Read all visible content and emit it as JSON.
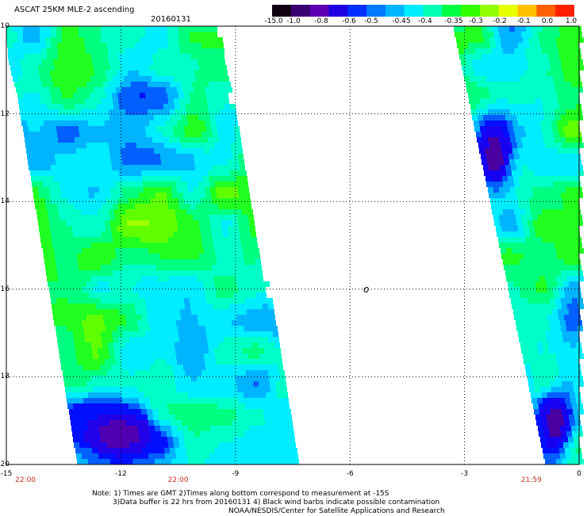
{
  "header": {
    "title": "ASCAT 25KM MLE-2 ascending",
    "date": "20160131"
  },
  "colorbar": {
    "colors": [
      "#120010",
      "#3a0070",
      "#5a00b0",
      "#2000e0",
      "#0030ff",
      "#0078ff",
      "#00b4ff",
      "#00ecff",
      "#00ffb0",
      "#00ff40",
      "#30ff00",
      "#90ff00",
      "#e8ff00",
      "#ffc000",
      "#ff6000",
      "#ff2000"
    ],
    "labels": [
      "-15.0",
      "-1.0",
      "-0.8",
      "-0.6",
      "-0.5",
      "-0.45",
      "-0.4",
      "-0.35",
      "-0.3",
      "-0.2",
      "-0.1",
      "0.0",
      "1.0"
    ]
  },
  "map": {
    "lon_range": [
      -15,
      0
    ],
    "lat_range": [
      -20,
      -10
    ],
    "y_labels": [
      "-10",
      "-12",
      "-14",
      "-16",
      "-18",
      "-20"
    ],
    "x_labels": [
      "-15",
      "-12",
      "-9",
      "-6",
      "-3",
      "0"
    ],
    "time_labels": [
      {
        "text": "22:00",
        "lon": -14.5
      },
      {
        "text": "22:00",
        "lon": -10.5
      },
      {
        "text": "21:59",
        "lon": -1.25
      }
    ],
    "grid_lon": [
      -12,
      -9,
      -6,
      -3
    ],
    "grid_lat": [
      -12,
      -14,
      -16,
      -18
    ],
    "marker_symbol": "o",
    "marker_lon": -5.65,
    "marker_lat": -16.0
  },
  "notes": [
    "Note: 1) Times are GMT 2)Times along bottom correspond to measurement at -15S",
    "3)Data buffer is 22 hrs from 20160131 4) Black wind barbs indicate possible contamination",
    "NOAA/NESDIS/Center for Satellite Applications and Research"
  ]
}
